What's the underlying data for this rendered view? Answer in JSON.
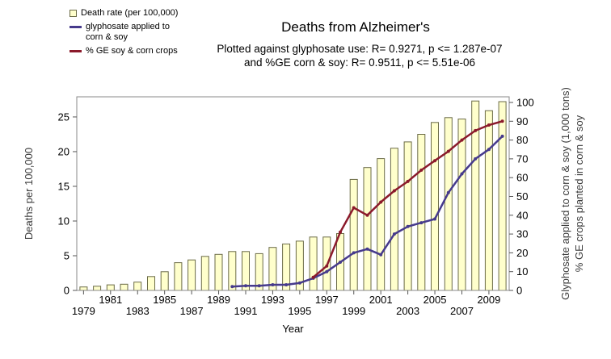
{
  "subtitle": {
    "line1": "Plotted against glyphosate use: R= 0.9271, p <= 1.287e-07",
    "line2": "and %GE corn & soy: R= 0.9511, p <= 5.51e-06"
  },
  "legend": {
    "items": [
      {
        "id": "death-rate",
        "label": "Death rate (per 100,000)",
        "swatch": "bar",
        "color": "#ffffcc",
        "border": "#6b6b47"
      },
      {
        "id": "glyphosate",
        "label": "glyphosate applied to corn & soy",
        "swatch": "line",
        "color": "#463a8c"
      },
      {
        "id": "ge-crops",
        "label": "% GE soy & corn crops",
        "swatch": "line",
        "color": "#8b1a2b"
      }
    ]
  },
  "chart_data": {
    "type": "combo-bar-line",
    "title": "Deaths from Alzheimer's",
    "xlabel": "Year",
    "ylabel_left": "Deaths per 100,000",
    "ylabel_right_line1": "Glyphosate applied to corn & soy (1,000 tons)",
    "ylabel_right_line2": "% GE crops planted in corn & soy",
    "years": [
      1979,
      1980,
      1981,
      1982,
      1983,
      1984,
      1985,
      1986,
      1987,
      1988,
      1989,
      1990,
      1991,
      1992,
      1993,
      1994,
      1995,
      1996,
      1997,
      1998,
      1999,
      2000,
      2001,
      2002,
      2003,
      2004,
      2005,
      2006,
      2007,
      2008,
      2009,
      2010
    ],
    "bars": {
      "name": "Death rate (per 100,000)",
      "axis": "left",
      "color": "#ffffcc",
      "border_color": "#6b6b47",
      "values": [
        0.5,
        0.6,
        0.8,
        0.9,
        1.2,
        2.0,
        2.7,
        4.0,
        4.4,
        4.9,
        5.2,
        5.6,
        5.6,
        5.3,
        6.2,
        6.7,
        7.1,
        7.7,
        7.7,
        8.2,
        16.0,
        17.7,
        19.0,
        20.5,
        21.4,
        22.5,
        24.2,
        24.9,
        24.7,
        27.3,
        25.9,
        27.2
      ]
    },
    "left_axis": {
      "ticks": [
        0,
        5,
        10,
        15,
        20,
        25
      ],
      "top_value": 27.9
    },
    "right_axis": {
      "ticks": [
        0,
        10,
        20,
        30,
        40,
        50,
        60,
        70,
        80,
        90,
        100
      ],
      "top_value": 103
    },
    "x_ticks": {
      "upper_row": [
        1981,
        1985,
        1989,
        1993,
        1997,
        2001,
        2005,
        2009
      ],
      "lower_row": [
        1979,
        1983,
        1987,
        1991,
        1995,
        1999,
        2003,
        2007
      ]
    },
    "lines": [
      {
        "id": "glyphosate",
        "name": "glyphosate applied to corn & soy",
        "axis": "right",
        "color": "#463a8c",
        "points": [
          [
            1990,
            2
          ],
          [
            1991,
            2.5
          ],
          [
            1992,
            2.5
          ],
          [
            1993,
            3
          ],
          [
            1994,
            3
          ],
          [
            1995,
            4
          ],
          [
            1996,
            6.5
          ],
          [
            1997,
            10
          ],
          [
            1998,
            15
          ],
          [
            1999,
            20
          ],
          [
            2000,
            22
          ],
          [
            2001,
            19
          ],
          [
            2002,
            30
          ],
          [
            2003,
            34
          ],
          [
            2004,
            36
          ],
          [
            2005,
            38
          ],
          [
            2006,
            52
          ],
          [
            2007,
            62
          ],
          [
            2008,
            70
          ],
          [
            2009,
            75
          ],
          [
            2010,
            82
          ]
        ]
      },
      {
        "id": "ge-crops",
        "name": "% GE soy & corn crops",
        "axis": "right",
        "color": "#8b1a2b",
        "points": [
          [
            1996,
            7
          ],
          [
            1997,
            13
          ],
          [
            1998,
            31
          ],
          [
            1999,
            44
          ],
          [
            2000,
            40
          ],
          [
            2001,
            47
          ],
          [
            2002,
            53
          ],
          [
            2003,
            58
          ],
          [
            2004,
            64
          ],
          [
            2005,
            69
          ],
          [
            2006,
            74
          ],
          [
            2007,
            80
          ],
          [
            2008,
            85
          ],
          [
            2009,
            88
          ],
          [
            2010,
            90
          ]
        ]
      }
    ]
  }
}
